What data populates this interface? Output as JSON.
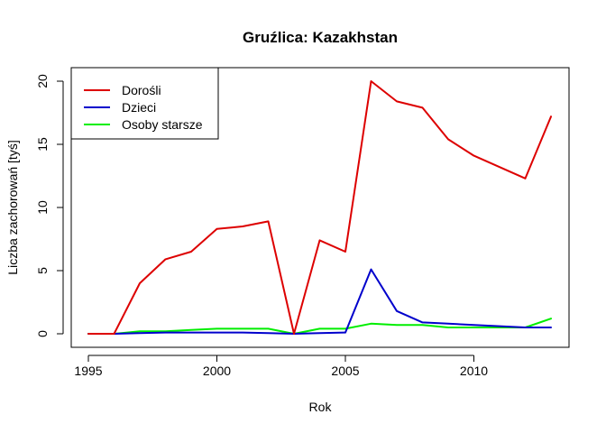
{
  "chart_data": {
    "type": "line",
    "title": "Gruźlica: Kazakhstan",
    "xlabel": "Rok",
    "ylabel": "Liczba zachorowań [tyś]",
    "xlim": [
      1995,
      2013
    ],
    "ylim": [
      0,
      20
    ],
    "x_ticks": [
      "1995",
      "2000",
      "2005",
      "2010"
    ],
    "y_ticks": [
      "0",
      "5",
      "10",
      "15",
      "20"
    ],
    "grid": false,
    "legend_position": "top-left",
    "x": [
      1995,
      1996,
      1997,
      1998,
      1999,
      2000,
      2001,
      2002,
      2003,
      2004,
      2005,
      2006,
      2007,
      2008,
      2009,
      2010,
      2011,
      2012,
      2013
    ],
    "series": [
      {
        "name": "Dorośli",
        "color": "#dd0000",
        "values": [
          0,
          0,
          4.0,
          5.9,
          6.5,
          8.3,
          8.5,
          8.9,
          0,
          7.4,
          6.5,
          20.0,
          18.4,
          17.9,
          15.4,
          14.1,
          13.2,
          12.3,
          17.2
        ]
      },
      {
        "name": "Dzieci",
        "color": "#0000cc",
        "values": [
          0,
          0,
          0.05,
          0.1,
          0.1,
          0.1,
          0.1,
          0.05,
          0,
          0.05,
          0.1,
          5.1,
          1.8,
          0.9,
          0.8,
          0.7,
          0.6,
          0.5,
          0.5
        ]
      },
      {
        "name": "Osoby starsze",
        "color": "#00ee00",
        "values": [
          0,
          0,
          0.2,
          0.2,
          0.3,
          0.4,
          0.4,
          0.4,
          0,
          0.4,
          0.4,
          0.8,
          0.7,
          0.7,
          0.5,
          0.5,
          0.5,
          0.5,
          1.2
        ]
      }
    ]
  }
}
